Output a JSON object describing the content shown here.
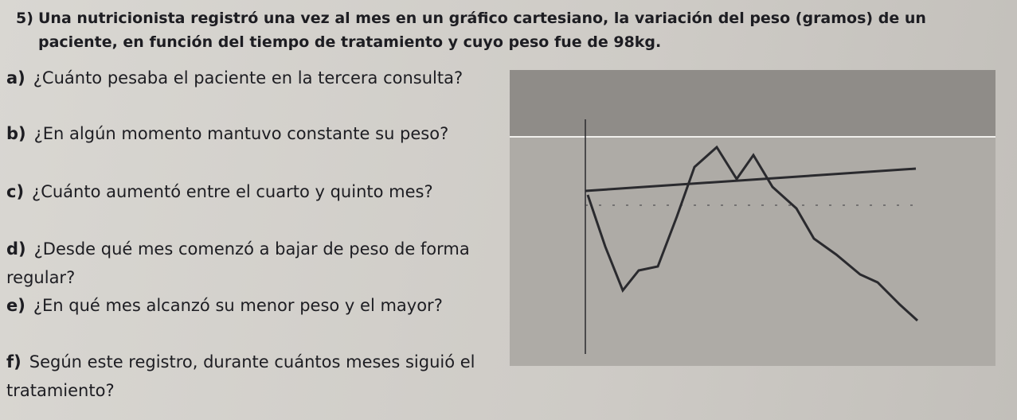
{
  "header": {
    "number": "5)",
    "text": "Una nutricionista registró una vez al mes en un gráfico cartesiano, la variación del peso (gramos) de un paciente, en función del tiempo de tratamiento y cuyo peso fue de 98kg."
  },
  "questions": [
    {
      "label": "a)",
      "text": "¿Cuánto pesaba el paciente en la tercera consulta?"
    },
    {
      "label": "b)",
      "text": "¿En algún momento mantuvo constante su peso?"
    },
    {
      "label": "c)",
      "text": "¿Cuánto aumentó entre el cuarto y quinto mes?"
    },
    {
      "label": "d)",
      "text": "¿Desde qué mes comenzó a bajar de peso de forma regular?"
    },
    {
      "label": "e)",
      "text": "¿En qué mes alcanzó su menor peso y el mayor?"
    },
    {
      "label": "f)",
      "text": "Según este registro, durante cuántos meses siguió el tratamiento?"
    }
  ]
}
